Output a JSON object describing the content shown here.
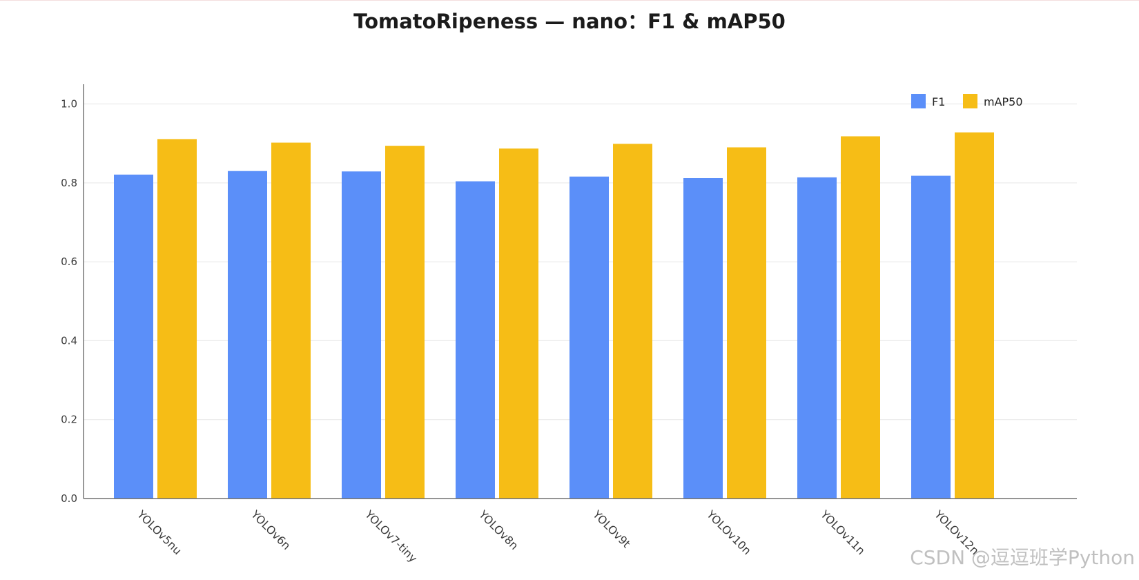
{
  "chart_data": {
    "type": "bar",
    "title": "TomatoRipeness — nano：F1 & mAP50",
    "categories": [
      "YOLOv5nu",
      "YOLOv6n",
      "YOLOv7-tiny",
      "YOLOv8n",
      "YOLOv9t",
      "YOLOv10n",
      "YOLOv11n",
      "YOLOv12n"
    ],
    "series": [
      {
        "name": "F1",
        "color": "#5b8ff9",
        "values": [
          0.821,
          0.83,
          0.829,
          0.804,
          0.816,
          0.812,
          0.814,
          0.818
        ]
      },
      {
        "name": "mAP50",
        "color": "#f6bd16",
        "values": [
          0.911,
          0.902,
          0.894,
          0.887,
          0.899,
          0.89,
          0.918,
          0.928
        ]
      }
    ],
    "xlabel": "",
    "ylabel": "",
    "ylim": [
      0,
      1.05
    ],
    "yticks": [
      "0.0",
      "0.2",
      "0.4",
      "0.6",
      "0.8",
      "1.0"
    ],
    "grid": true,
    "legend_position": "top-right"
  },
  "watermark": "CSDN @逗逗班学Python"
}
